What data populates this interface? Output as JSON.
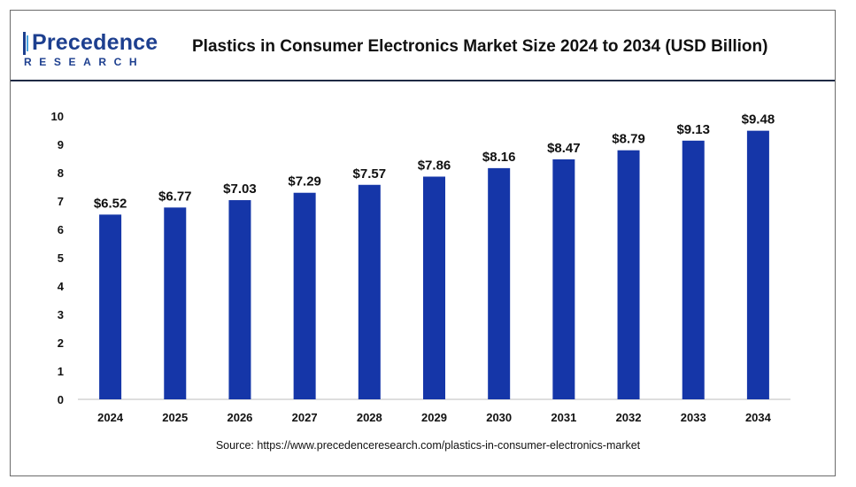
{
  "brand": {
    "name": "Precedence",
    "sub": "RESEARCH"
  },
  "chart_data": {
    "type": "bar",
    "title": "Plastics in Consumer Electronics Market Size 2024 to 2034 (USD Billion)",
    "categories": [
      "2024",
      "2025",
      "2026",
      "2027",
      "2028",
      "2029",
      "2030",
      "2031",
      "2032",
      "2033",
      "2034"
    ],
    "values": [
      6.52,
      6.77,
      7.03,
      7.29,
      7.57,
      7.86,
      8.16,
      8.47,
      8.79,
      9.13,
      9.48
    ],
    "data_labels": [
      "$6.52",
      "$6.77",
      "$7.03",
      "$7.29",
      "$7.57",
      "$7.86",
      "$8.16",
      "$8.47",
      "$8.79",
      "$9.13",
      "$9.48"
    ],
    "yticks": [
      0,
      1,
      2,
      3,
      4,
      5,
      6,
      7,
      8,
      9,
      10
    ],
    "ylim": [
      0,
      10
    ],
    "xlabel": "",
    "ylabel": "",
    "grid": false,
    "bar_color": "#1536a8"
  },
  "source": "Source: https://www.precedenceresearch.com/plastics-in-consumer-electronics-market"
}
